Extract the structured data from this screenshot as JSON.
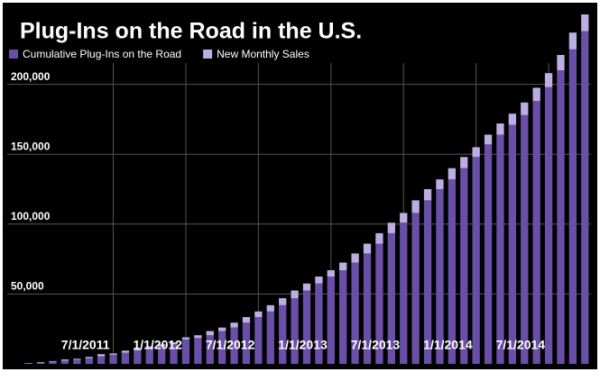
{
  "chart_data": {
    "type": "stacked_bar",
    "title": "Plug-Ins on the Road in the U.S.",
    "categories": [
      null,
      null,
      null,
      null,
      null,
      null,
      null,
      "7/1/2011",
      null,
      null,
      null,
      null,
      null,
      "1/1/2012",
      null,
      null,
      null,
      null,
      null,
      "7/1/2012",
      null,
      null,
      null,
      null,
      null,
      "1/1/2013",
      null,
      null,
      null,
      null,
      null,
      "7/1/2013",
      null,
      null,
      null,
      null,
      null,
      "1/1/2014",
      null,
      null,
      null,
      null,
      null,
      "7/1/2014",
      null,
      null,
      null
    ],
    "series": [
      {
        "name": "Cumulative Plug-Ins on the Road",
        "color": "#6a4fa8",
        "values": [
          300,
          800,
          1400,
          2300,
          3000,
          4000,
          5500,
          6500,
          8000,
          9500,
          11000,
          12500,
          14000,
          17500,
          18500,
          20500,
          23500,
          26000,
          29500,
          33500,
          37500,
          42000,
          47000,
          52500,
          57500,
          62500,
          67000,
          72500,
          79000,
          86000,
          93500,
          101000,
          108000,
          117000,
          125000,
          132000,
          140000,
          148000,
          157000,
          164000,
          171000,
          178000,
          188000,
          198000,
          210000,
          225000,
          238000
        ]
      },
      {
        "name": "New Monthly Sales",
        "color": "#bcaee0",
        "values": [
          300,
          500,
          600,
          900,
          700,
          1000,
          1500,
          1000,
          1500,
          1500,
          1500,
          1500,
          1500,
          1500,
          2000,
          3000,
          2500,
          3500,
          4000,
          4000,
          4500,
          5000,
          5500,
          5000,
          5000,
          4500,
          5500,
          6500,
          7000,
          7500,
          7500,
          7000,
          9000,
          8000,
          7000,
          8000,
          8000,
          7000,
          7000,
          8000,
          8000,
          9000,
          9500,
          10000,
          11000,
          12000,
          12000
        ]
      }
    ],
    "ylim": [
      0,
      250000
    ],
    "yticks": [
      {
        "value": 50000,
        "label": "50,000"
      },
      {
        "value": 100000,
        "label": "100,000"
      },
      {
        "value": 150000,
        "label": "150,000"
      },
      {
        "value": 200000,
        "label": "200,000"
      }
    ],
    "grid": true,
    "legend": "top-left"
  }
}
